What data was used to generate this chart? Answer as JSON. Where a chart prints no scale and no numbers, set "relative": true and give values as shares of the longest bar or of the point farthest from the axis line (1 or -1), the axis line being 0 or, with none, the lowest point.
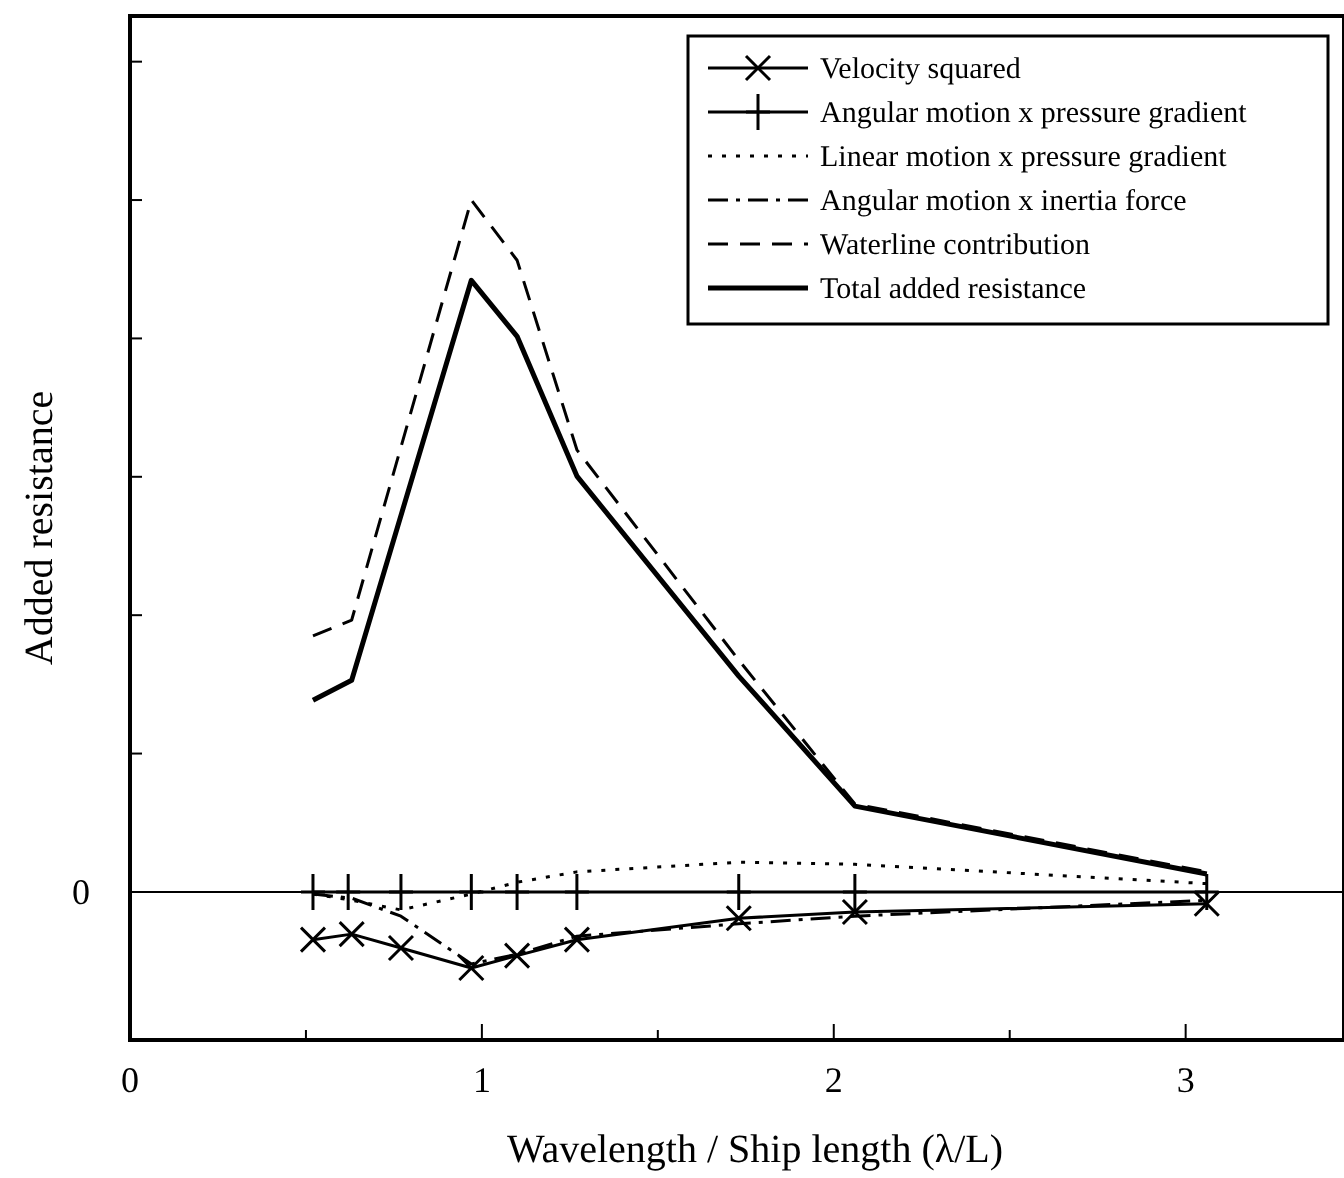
{
  "chart_data": {
    "type": "line",
    "relative": true,
    "xlabel": "Wavelength / Ship length (λ/L)",
    "ylabel": "Added resistance",
    "xlim": [
      0,
      3.45
    ],
    "xticks": [
      0,
      1,
      2,
      3
    ],
    "legend": "top right",
    "ref_lines": [
      {
        "axis": "y",
        "value": 0,
        "label": "0",
        "color": "#000000"
      }
    ],
    "series": [
      {
        "name": "Velocity squared",
        "color": "#000000",
        "marker": "cross",
        "line_style": "solid",
        "x": [
          0.52,
          0.63,
          0.77,
          0.97,
          1.1,
          1.27,
          1.73,
          2.06,
          3.06
        ],
        "values": [
          -0.069,
          -0.061,
          -0.081,
          -0.11,
          -0.092,
          -0.069,
          -0.038,
          -0.029,
          -0.017
        ]
      },
      {
        "name": "Angular motion x pressure gradient",
        "color": "#000000",
        "marker": "plus",
        "line_style": "solid",
        "x": [
          0.52,
          0.62,
          0.77,
          0.97,
          1.1,
          1.27,
          1.73,
          2.06,
          3.06
        ],
        "values": [
          0,
          0,
          0,
          0,
          0,
          0,
          0,
          0,
          0
        ]
      },
      {
        "name": "Linear motion x pressure gradient",
        "color": "#000000",
        "marker": "none",
        "line_style": "dotted",
        "x": [
          0.52,
          0.63,
          0.77,
          0.97,
          1.1,
          1.27,
          1.73,
          2.06,
          3.06
        ],
        "values": [
          -0.003,
          -0.012,
          -0.026,
          -0.003,
          0.014,
          0.029,
          0.043,
          0.04,
          0.012
        ]
      },
      {
        "name": "Angular motion x inertia force",
        "color": "#000000",
        "marker": "none",
        "line_style": "dashdot",
        "x": [
          0.52,
          0.63,
          0.77,
          0.97,
          1.1,
          1.27,
          1.73,
          2.06,
          3.06
        ],
        "values": [
          -0.003,
          -0.009,
          -0.035,
          -0.104,
          -0.09,
          -0.064,
          -0.046,
          -0.035,
          -0.012
        ]
      },
      {
        "name": "Waterline contribution",
        "color": "#000000",
        "marker": "none",
        "line_style": "dashed",
        "x": [
          0.52,
          0.63,
          0.97,
          1.1,
          1.27,
          1.73,
          2.06,
          3.06
        ],
        "values": [
          0.37,
          0.393,
          1,
          0.913,
          0.639,
          0.335,
          0.127,
          0.029
        ]
      },
      {
        "name": "Total added resistance",
        "color": "#000000",
        "marker": "none",
        "line_style": "solid",
        "x": [
          0.52,
          0.63,
          0.97,
          1.1,
          1.27,
          1.73,
          2.06,
          3.06
        ],
        "values": [
          0.277,
          0.306,
          0.884,
          0.803,
          0.601,
          0.312,
          0.124,
          0.026
        ]
      }
    ]
  }
}
